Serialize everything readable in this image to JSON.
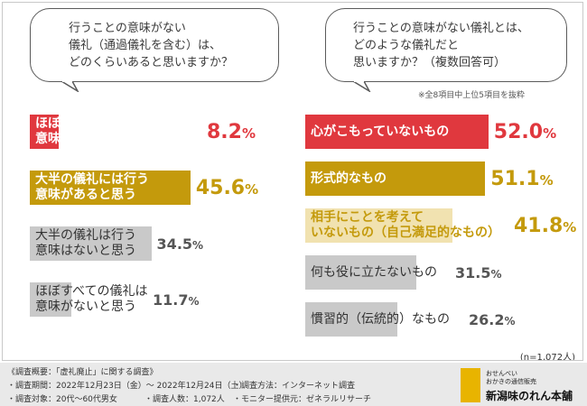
{
  "left_question": "行うことの意味がない\n儀礼（通過儀礼を含む）は、\nどのくらいあると思いますか？",
  "right_question": "行うことの意味がない儀礼とは、\nどのような儀礼だと\n思いますか？（複数回答可）",
  "note": "※全8項目中上位5項目を抜粋",
  "sample_size": "(n=1,072人)",
  "colors": {
    "red": "#e0383e",
    "gold": "#c49a0c",
    "gray": "#c9c9c9",
    "red_light": "#f4c7c8",
    "gold_light": "#f1e2b0"
  },
  "chart_data": [
    {
      "type": "bar",
      "categories": [
        "ほぼすべての儀礼に行う\n意味があると思う",
        "大半の儀礼には行う\n意味があると思う",
        "大半の儀礼は行う\n意味はないと思う",
        "ほぼすべての儀礼は\n意味がないと思う"
      ],
      "values": [
        8.2,
        45.6,
        34.5,
        11.7
      ],
      "value_labels": [
        "8.2",
        "45.6",
        "34.5",
        "11.7"
      ],
      "unit": "%",
      "styles": [
        "red",
        "gold",
        "gray",
        "gray"
      ],
      "title": "行うことの意味がない\n儀礼（通過儀礼を含む）は、\nどのくらいあると思いますか？"
    },
    {
      "type": "bar",
      "categories": [
        "心がこもっていないもの",
        "形式的なもの",
        "相手にことを考えて\nいないもの（自己満足的なもの）",
        "何も役に立たないもの",
        "慣習的（伝統的）なもの"
      ],
      "values": [
        52.0,
        51.1,
        41.8,
        31.5,
        26.2
      ],
      "value_labels": [
        "52.0",
        "51.1",
        "41.8",
        "31.5",
        "26.2"
      ],
      "unit": "%",
      "styles": [
        "red",
        "gold",
        "gold_light",
        "gray",
        "gray"
      ],
      "title": "行うことの意味がない儀礼とは、\nどのような儀礼だと\n思いますか？（複数回答可）"
    }
  ],
  "footer": {
    "line1": "《調査概要：「虚礼廃止」に関する調査》",
    "period": "・調査期間：2022年12月23日（金）～ 2022年12月24日（土）",
    "method": "・調査方法：インターネット調査",
    "target": "・調査対象：20代～60代男女",
    "count": "・調査人数：1,072人",
    "provider": "・モニター提供元：ゼネラルリサーチ"
  },
  "logo": {
    "sub": "おせんべい\nおかきの通信販売",
    "main": "新潟味のれん本舗"
  }
}
